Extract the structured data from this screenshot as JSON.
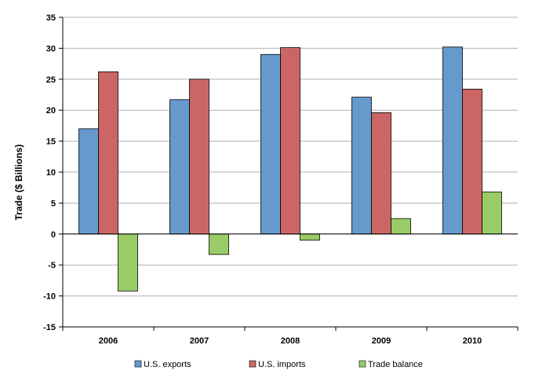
{
  "chart_data": {
    "type": "bar",
    "title": "",
    "xlabel": "",
    "ylabel": "Trade ($ Billions)",
    "categories": [
      "2006",
      "2007",
      "2008",
      "2009",
      "2010"
    ],
    "ylim": [
      -15,
      35
    ],
    "yticks": [
      -15,
      -10,
      -5,
      0,
      5,
      10,
      15,
      20,
      25,
      30,
      35
    ],
    "grid": true,
    "legend_position": "bottom",
    "series": [
      {
        "name": "U.S. exports",
        "color": "#6699cc",
        "values": [
          17.0,
          21.7,
          29.0,
          22.1,
          30.2
        ]
      },
      {
        "name": "U.S. imports",
        "color": "#cc6666",
        "values": [
          26.2,
          25.0,
          30.1,
          19.6,
          23.4
        ]
      },
      {
        "name": "Trade balance",
        "color": "#99cc66",
        "values": [
          -9.2,
          -3.3,
          -1.0,
          2.5,
          6.8
        ]
      }
    ]
  }
}
